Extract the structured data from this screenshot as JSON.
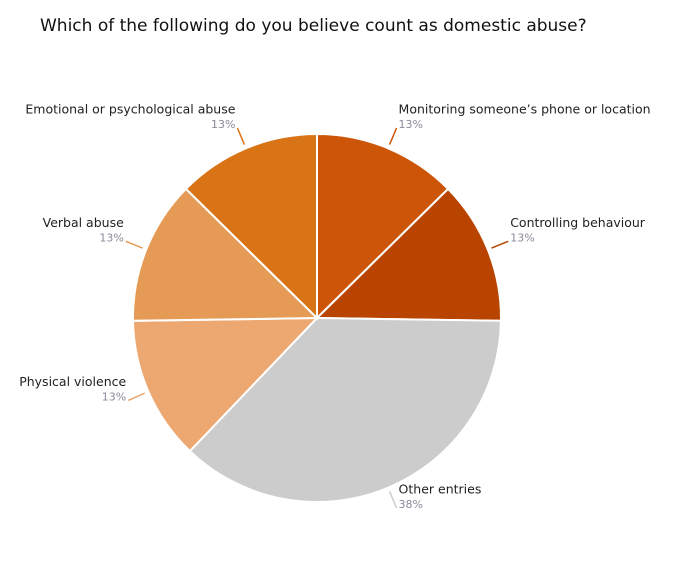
{
  "chart_data": {
    "type": "pie",
    "title": "Which of the following do you believe count as domestic abuse?",
    "categories": [
      "Monitoring someone’s phone or location",
      "Controlling behaviour",
      "Other entries",
      "Physical violence",
      "Verbal abuse",
      "Emotional or psychological abuse"
    ],
    "values": [
      13,
      13,
      38,
      13,
      13,
      13
    ],
    "value_labels": [
      "13%",
      "13%",
      "38%",
      "13%",
      "13%",
      "13%"
    ],
    "colors": [
      "#cc5508",
      "#b84400",
      "#cccccc",
      "#eda872",
      "#e59a55",
      "#d87316"
    ]
  }
}
